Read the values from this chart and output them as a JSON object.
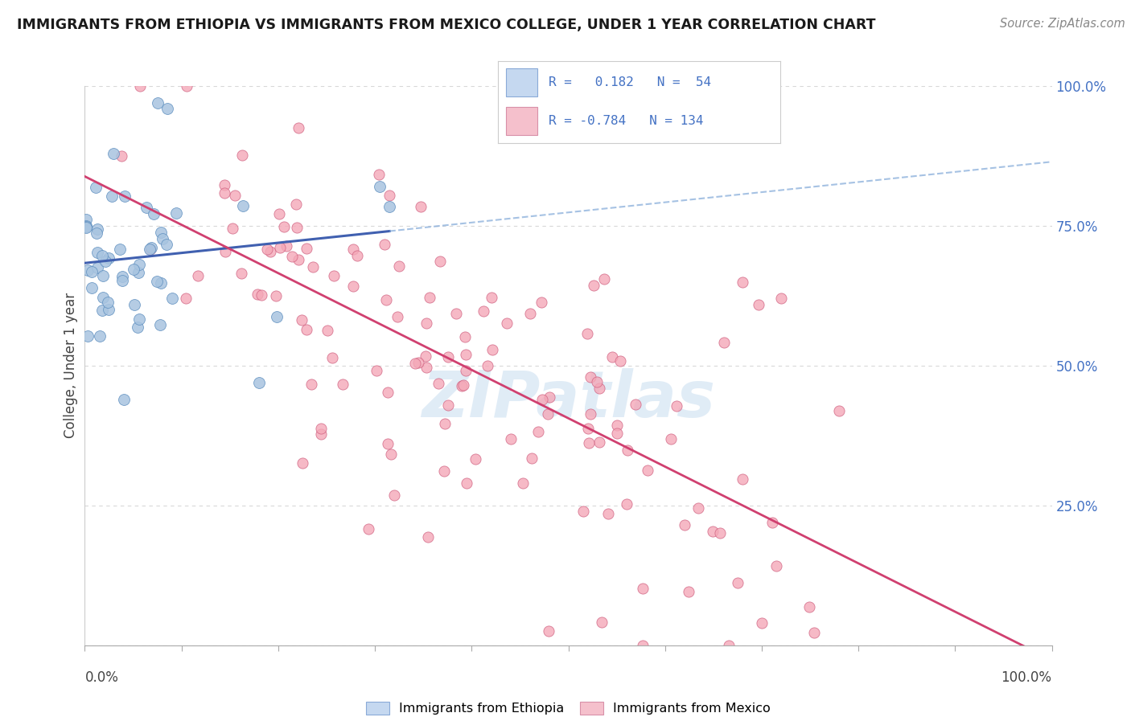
{
  "title": "IMMIGRANTS FROM ETHIOPIA VS IMMIGRANTS FROM MEXICO COLLEGE, UNDER 1 YEAR CORRELATION CHART",
  "source": "Source: ZipAtlas.com",
  "ylabel": "College, Under 1 year",
  "r_ethiopia": 0.182,
  "n_ethiopia": 54,
  "r_mexico": -0.784,
  "n_mexico": 134,
  "xmin": 0.0,
  "xmax": 1.0,
  "ymin": 0.0,
  "ymax": 1.0,
  "yticks": [
    0.0,
    0.25,
    0.5,
    0.75,
    1.0
  ],
  "ytick_labels": [
    "",
    "25.0%",
    "50.0%",
    "75.0%",
    "100.0%"
  ],
  "color_ethiopia_fill": "#a8c4e0",
  "color_ethiopia_edge": "#6090c0",
  "color_mexico_fill": "#f4a8b8",
  "color_mexico_edge": "#d06080",
  "color_line_ethiopia": "#4060b0",
  "color_line_mexico": "#d04070",
  "color_line_ethiopia_dash": "#80a8d8",
  "watermark_color": "#c8ddf0",
  "legend_box_color_ethiopia": "#c5d8f0",
  "legend_box_color_mexico": "#f5c0cc",
  "legend_edge_ethiopia": "#8aaad8",
  "legend_edge_mexico": "#d890a8",
  "background_color": "#ffffff",
  "grid_color": "#d8d8d8",
  "title_color": "#1a1a1a",
  "axis_label_color": "#4472c4",
  "right_label_color": "#4472c4",
  "bottom_label_color": "#444444",
  "watermark": "ZIPatlas"
}
